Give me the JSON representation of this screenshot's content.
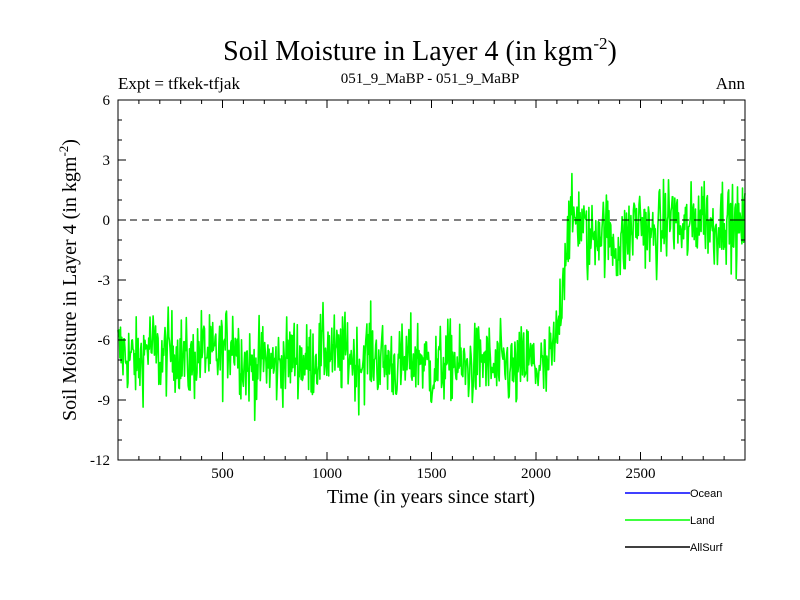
{
  "header": {
    "title_main": "Soil Moisture in Layer 4 (in kgm",
    "title_sup": "-2",
    "title_end": ")",
    "expt": "Expt = tfkek-tfjak",
    "subtitle": "051_9_MaBP - 051_9_MaBP",
    "season": "Ann"
  },
  "chart_data": {
    "type": "line",
    "title": "Soil Moisture in Layer 4 (in kgm-2)",
    "xlabel": "Time (in years since start)",
    "ylabel": "Soil Moisture in Layer 4 (in kgm-2)",
    "xlim": [
      0,
      3000
    ],
    "ylim": [
      -12,
      6
    ],
    "x_ticks": [
      500,
      1000,
      1500,
      2000,
      2500
    ],
    "y_ticks": [
      -12,
      -9,
      -6,
      -3,
      0,
      3,
      6
    ],
    "reference_line": {
      "y": 0,
      "style": "dashed"
    },
    "legend_position": "bottom-right",
    "colors": {
      "Ocean": "#0000ff",
      "Land": "#00ff00",
      "AllSurf": "#000000"
    },
    "series": [
      {
        "name": "Ocean",
        "values": []
      },
      {
        "name": "Land",
        "x": [
          0,
          50,
          100,
          150,
          200,
          250,
          300,
          350,
          400,
          450,
          500,
          550,
          600,
          650,
          700,
          750,
          800,
          850,
          900,
          950,
          1000,
          1050,
          1100,
          1150,
          1200,
          1250,
          1300,
          1350,
          1400,
          1450,
          1500,
          1550,
          1600,
          1650,
          1700,
          1750,
          1800,
          1850,
          1900,
          1950,
          2000,
          2050,
          2100,
          2150,
          2200,
          2250,
          2300,
          2350,
          2400,
          2450,
          2500,
          2550,
          2600,
          2650,
          2700,
          2750,
          2800,
          2850,
          2900,
          2950,
          3000
        ],
        "values": [
          -6.5,
          -6.8,
          -7.2,
          -6.1,
          -7.0,
          -6.5,
          -6.7,
          -7.3,
          -6.4,
          -6.9,
          -6.6,
          -5.8,
          -7.1,
          -7.5,
          -6.9,
          -7.4,
          -7.0,
          -6.7,
          -7.2,
          -6.8,
          -6.4,
          -6.9,
          -6.6,
          -7.3,
          -6.5,
          -7.0,
          -7.1,
          -7.4,
          -6.9,
          -6.8,
          -7.6,
          -7.2,
          -7.0,
          -7.5,
          -7.3,
          -6.9,
          -7.6,
          -7.2,
          -7.7,
          -7.0,
          -7.3,
          -7.6,
          -6.0,
          -0.5,
          0.3,
          -1.2,
          -0.3,
          -0.8,
          -1.5,
          -0.6,
          0.2,
          -1.0,
          -0.4,
          0.4,
          -0.7,
          -0.2,
          0.5,
          -0.6,
          0.3,
          -0.5,
          -0.3
        ]
      },
      {
        "name": "AllSurf",
        "values": []
      }
    ]
  }
}
